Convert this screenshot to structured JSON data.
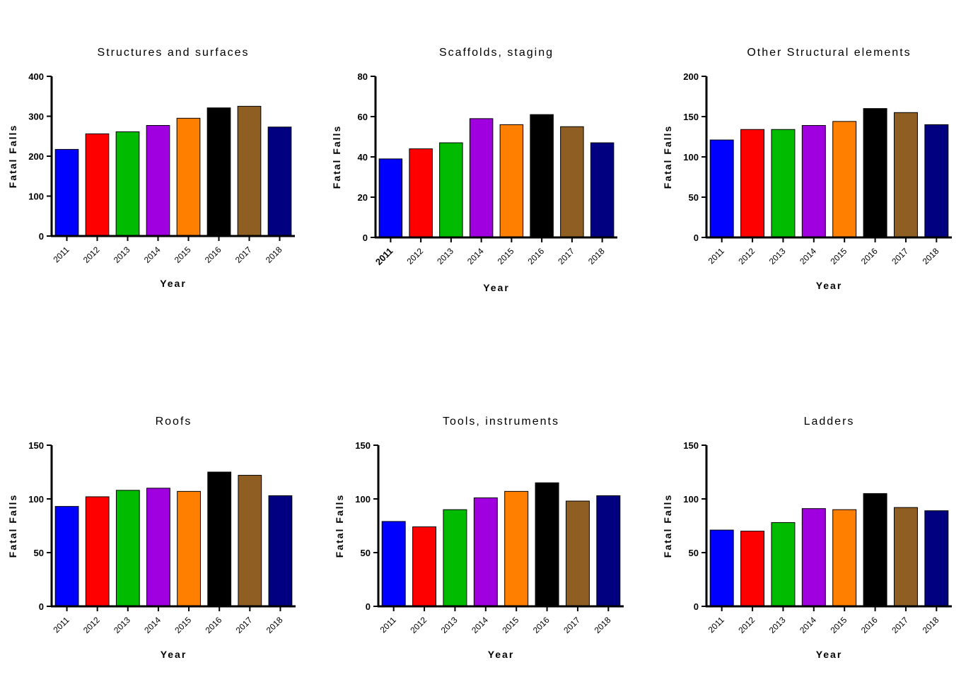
{
  "chart_data": [
    {
      "type": "bar",
      "title": "Structures and surfaces",
      "xlabel": "Year",
      "ylabel": "Fatal Falls",
      "categories": [
        "2011",
        "2012",
        "2013",
        "2014",
        "2015",
        "2016",
        "2017",
        "2018"
      ],
      "values": [
        217,
        256,
        261,
        277,
        295,
        321,
        325,
        273
      ],
      "ylim": [
        0,
        400
      ],
      "yticks": [
        "0",
        "100",
        "200",
        "300",
        "400"
      ],
      "colors": [
        "#0000FF",
        "#FF0000",
        "#00BB00",
        "#A000E0",
        "#FF8000",
        "#000000",
        "#8E5E22",
        "#000080"
      ],
      "grid": false
    },
    {
      "type": "bar",
      "title": "Scaffolds, staging",
      "xlabel": "Year",
      "ylabel": "Fatal Falls",
      "categories": [
        "2011",
        "2012",
        "2013",
        "2014",
        "2015",
        "2016",
        "2017",
        "2018"
      ],
      "values": [
        39,
        44,
        47,
        59,
        56,
        61,
        55,
        47
      ],
      "ylim": [
        0,
        80
      ],
      "yticks": [
        "0",
        "20",
        "40",
        "60",
        "80"
      ],
      "colors": [
        "#0000FF",
        "#FF0000",
        "#00BB00",
        "#A000E0",
        "#FF8000",
        "#000000",
        "#8E5E22",
        "#000080"
      ],
      "grid": false
    },
    {
      "type": "bar",
      "title": "Other Structural elements",
      "xlabel": "Year",
      "ylabel": "Fatal Falls",
      "categories": [
        "2011",
        "2012",
        "2013",
        "2014",
        "2015",
        "2016",
        "2017",
        "2018"
      ],
      "values": [
        121,
        134,
        134,
        139,
        144,
        160,
        155,
        140
      ],
      "ylim": [
        0,
        200
      ],
      "yticks": [
        "0",
        "50",
        "100",
        "150",
        "200"
      ],
      "colors": [
        "#0000FF",
        "#FF0000",
        "#00BB00",
        "#A000E0",
        "#FF8000",
        "#000000",
        "#8E5E22",
        "#000080"
      ],
      "grid": false
    },
    {
      "type": "bar",
      "title": "Roofs",
      "xlabel": "Year",
      "ylabel": "Fatal Falls",
      "categories": [
        "2011",
        "2012",
        "2013",
        "2014",
        "2015",
        "2016",
        "2017",
        "2018"
      ],
      "values": [
        93,
        102,
        108,
        110,
        107,
        125,
        122,
        103
      ],
      "ylim": [
        0,
        150
      ],
      "yticks": [
        "0",
        "50",
        "100",
        "150"
      ],
      "colors": [
        "#0000FF",
        "#FF0000",
        "#00BB00",
        "#A000E0",
        "#FF8000",
        "#000000",
        "#8E5E22",
        "#000080"
      ],
      "grid": false
    },
    {
      "type": "bar",
      "title": "Tools, instruments",
      "xlabel": "Year",
      "ylabel": "Fatal Falls",
      "categories": [
        "2011",
        "2012",
        "2013",
        "2014",
        "2015",
        "2016",
        "2017",
        "2018"
      ],
      "values": [
        79,
        74,
        90,
        101,
        107,
        115,
        98,
        103
      ],
      "ylim": [
        0,
        150
      ],
      "yticks": [
        "0",
        "50",
        "100",
        "150"
      ],
      "colors": [
        "#0000FF",
        "#FF0000",
        "#00BB00",
        "#A000E0",
        "#FF8000",
        "#000000",
        "#8E5E22",
        "#000080"
      ],
      "grid": false
    },
    {
      "type": "bar",
      "title": "Ladders",
      "xlabel": "Year",
      "ylabel": "Fatal Falls",
      "categories": [
        "2011",
        "2012",
        "2013",
        "2014",
        "2015",
        "2016",
        "2017",
        "2018"
      ],
      "values": [
        71,
        70,
        78,
        91,
        90,
        105,
        92,
        89
      ],
      "ylim": [
        0,
        150
      ],
      "yticks": [
        "0",
        "50",
        "100",
        "150"
      ],
      "colors": [
        "#0000FF",
        "#FF0000",
        "#00BB00",
        "#A000E0",
        "#FF8000",
        "#000000",
        "#8E5E22",
        "#000080"
      ],
      "grid": false
    }
  ]
}
